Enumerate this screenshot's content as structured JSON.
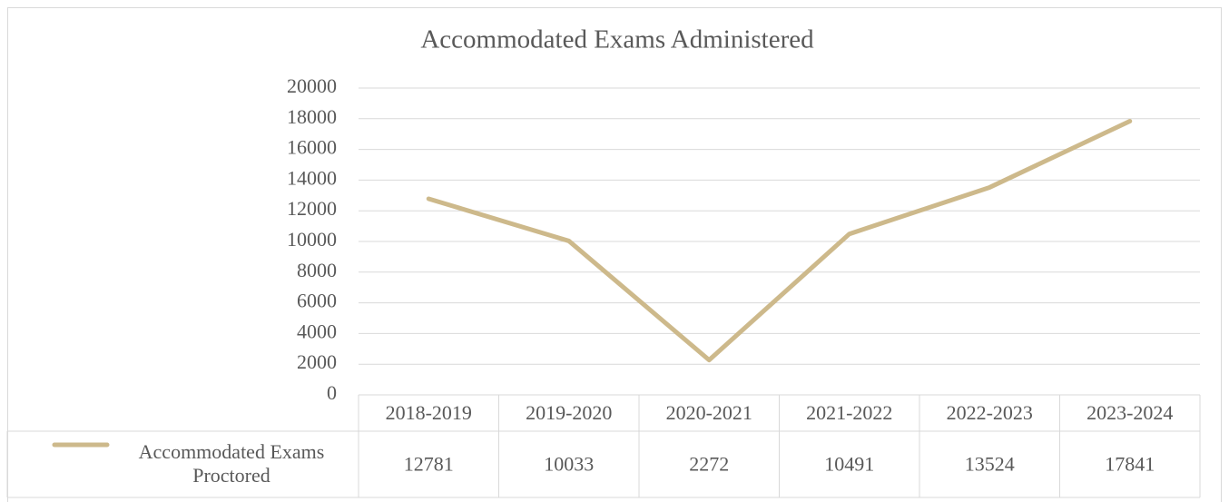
{
  "chart_data": {
    "type": "line",
    "title": "Accommodated Exams Administered",
    "categories": [
      "2018-2019",
      "2019-2020",
      "2020-2021",
      "2021-2022",
      "2022-2023",
      "2023-2024"
    ],
    "series": [
      {
        "name": "Accommodated Exams Proctored",
        "color": "#cdb98b",
        "values": [
          12781,
          10033,
          2272,
          10491,
          13524,
          17841
        ]
      }
    ],
    "ylim": [
      0,
      20000
    ],
    "yticks": [
      0,
      2000,
      4000,
      6000,
      8000,
      10000,
      12000,
      14000,
      16000,
      18000,
      20000
    ],
    "grid": true
  }
}
